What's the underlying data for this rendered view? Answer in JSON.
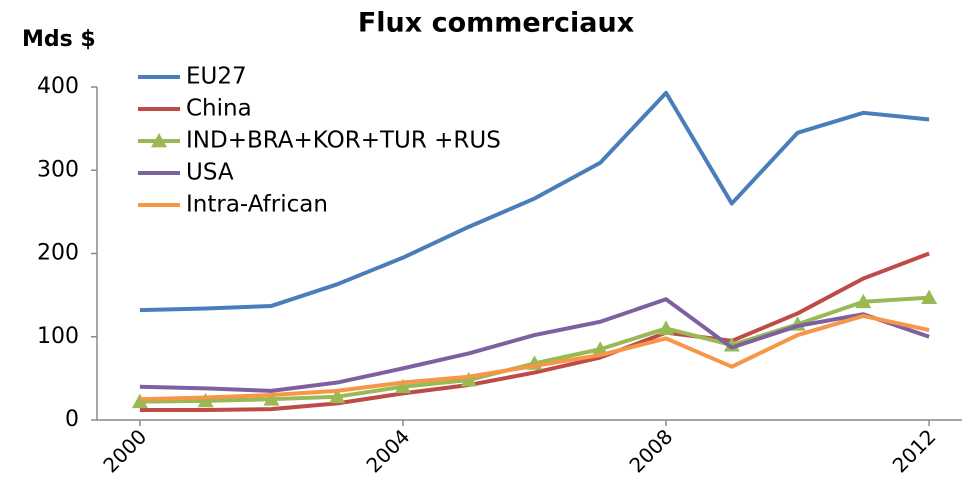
{
  "chart_data": {
    "type": "line",
    "title": "Flux commerciaux",
    "y_label": "Mds $",
    "categories": [
      "2000",
      null,
      null,
      null,
      "2004",
      null,
      null,
      null,
      "2008",
      null,
      null,
      null,
      "2012"
    ],
    "ylim": [
      0,
      400
    ],
    "yticks": [
      0,
      100,
      200,
      300,
      400
    ],
    "grid": false,
    "legend": "upper left",
    "series": [
      {
        "name": "EU27",
        "color": "#4a7ebb",
        "values": [
          132,
          134,
          137,
          163,
          195,
          232,
          266,
          309,
          393,
          260,
          345,
          369,
          361
        ]
      },
      {
        "name": "China",
        "color": "#be4b48",
        "values": [
          12,
          12,
          13,
          20,
          32,
          42,
          57,
          75,
          105,
          95,
          128,
          170,
          200
        ]
      },
      {
        "name": "IND+BRA+KOR+TUR +RUS",
        "color": "#98b954",
        "marker": "triangle",
        "values": [
          22,
          23,
          25,
          28,
          40,
          48,
          68,
          85,
          110,
          90,
          115,
          142,
          147
        ]
      },
      {
        "name": "USA",
        "color": "#7d60a0",
        "values": [
          40,
          38,
          35,
          45,
          62,
          80,
          102,
          118,
          145,
          87,
          113,
          127,
          100
        ]
      },
      {
        "name": "Intra-African",
        "color": "#f79646",
        "values": [
          25,
          27,
          30,
          35,
          45,
          52,
          65,
          78,
          98,
          64,
          102,
          125,
          108
        ]
      }
    ]
  }
}
